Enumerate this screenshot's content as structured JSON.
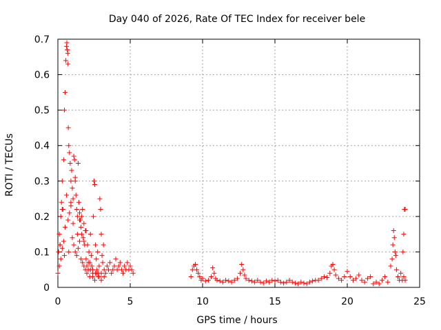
{
  "chart_data": {
    "type": "scatter",
    "title": "Day 040 of 2026, Rate Of TEC Index for receiver bele",
    "xlabel": "GPS time / hours",
    "ylabel": "ROTI / TECUs",
    "xlim": [
      0,
      25
    ],
    "ylim": [
      0,
      0.7
    ],
    "xticks": [
      0,
      5,
      10,
      15,
      20,
      25
    ],
    "yticks": [
      0,
      0.1,
      0.2,
      0.3,
      0.4,
      0.5,
      0.6,
      0.7
    ],
    "grid": true,
    "marker": "plus",
    "colors": {
      "marker": "#ff0000"
    },
    "x": [
      0.0,
      0.05,
      0.1,
      0.15,
      0.2,
      0.25,
      0.3,
      0.35,
      0.4,
      0.45,
      0.5,
      0.55,
      0.6,
      0.62,
      0.65,
      0.68,
      0.7,
      0.72,
      0.75,
      0.8,
      0.85,
      0.9,
      0.95,
      1.0,
      1.05,
      1.1,
      1.15,
      1.2,
      1.25,
      1.3,
      1.35,
      1.4,
      1.45,
      1.5,
      1.55,
      1.6,
      1.65,
      1.7,
      1.75,
      1.8,
      1.85,
      1.9,
      1.95,
      2.0,
      2.05,
      2.1,
      2.15,
      2.2,
      2.25,
      2.3,
      2.35,
      2.4,
      2.45,
      2.5,
      2.55,
      2.6,
      2.65,
      2.7,
      2.75,
      2.8,
      2.85,
      2.9,
      2.95,
      3.0,
      3.05,
      3.1,
      3.15,
      3.2,
      3.3,
      3.4,
      3.5,
      3.6,
      3.7,
      3.8,
      3.9,
      4.0,
      4.1,
      4.2,
      4.3,
      4.4,
      4.5,
      4.6,
      4.7,
      4.8,
      4.9,
      5.0,
      5.1,
      5.2,
      0.1,
      0.2,
      0.3,
      0.4,
      0.5,
      0.7,
      0.8,
      0.9,
      1.0,
      1.1,
      1.2,
      1.3,
      1.4,
      1.5,
      1.6,
      1.7,
      1.8,
      1.9,
      2.0,
      2.2,
      2.4,
      2.6,
      2.8,
      3.0,
      3.2,
      0.15,
      0.3,
      0.45,
      0.6,
      0.75,
      0.9,
      1.05,
      1.2,
      1.35,
      1.5,
      1.65,
      1.8,
      1.95,
      2.1,
      2.25,
      2.4,
      2.55,
      2.7,
      2.85,
      3.0,
      9.2,
      9.3,
      9.4,
      9.5,
      9.6,
      9.7,
      9.8,
      9.9,
      10.0,
      10.2,
      10.4,
      10.6,
      10.7,
      10.8,
      10.9,
      11.0,
      11.2,
      11.4,
      11.6,
      11.8,
      12.0,
      12.2,
      12.4,
      12.6,
      12.7,
      12.8,
      12.9,
      13.0,
      13.2,
      13.4,
      13.6,
      13.8,
      14.0,
      14.2,
      14.4,
      14.6,
      14.8,
      15.0,
      15.2,
      15.4,
      15.6,
      15.8,
      16.0,
      16.2,
      16.4,
      16.6,
      16.8,
      17.0,
      17.2,
      17.4,
      17.6,
      17.8,
      18.0,
      18.2,
      18.4,
      18.6,
      18.8,
      18.9,
      19.0,
      19.1,
      19.2,
      19.4,
      19.6,
      19.8,
      20.0,
      20.2,
      20.4,
      20.6,
      20.8,
      21.0,
      21.2,
      21.4,
      21.6,
      21.8,
      22.0,
      22.2,
      22.4,
      22.6,
      22.8,
      23.0,
      23.1,
      23.15,
      23.2,
      23.25,
      23.3,
      23.35,
      23.4,
      23.5,
      23.6,
      23.7,
      23.8,
      23.9,
      24.0,
      23.85,
      23.9,
      23.95,
      24.0
    ],
    "y": [
      0.04,
      0.1,
      0.15,
      0.12,
      0.2,
      0.24,
      0.3,
      0.22,
      0.36,
      0.5,
      0.55,
      0.64,
      0.68,
      0.69,
      0.67,
      0.66,
      0.63,
      0.45,
      0.4,
      0.38,
      0.35,
      0.3,
      0.33,
      0.28,
      0.25,
      0.37,
      0.36,
      0.3,
      0.26,
      0.22,
      0.2,
      0.35,
      0.24,
      0.21,
      0.19,
      0.17,
      0.15,
      0.22,
      0.14,
      0.18,
      0.12,
      0.16,
      0.08,
      0.06,
      0.12,
      0.05,
      0.1,
      0.07,
      0.15,
      0.09,
      0.06,
      0.04,
      0.2,
      0.3,
      0.29,
      0.12,
      0.08,
      0.05,
      0.1,
      0.04,
      0.06,
      0.25,
      0.22,
      0.15,
      0.09,
      0.07,
      0.12,
      0.05,
      0.04,
      0.06,
      0.05,
      0.07,
      0.04,
      0.05,
      0.06,
      0.08,
      0.05,
      0.06,
      0.07,
      0.05,
      0.04,
      0.06,
      0.05,
      0.07,
      0.05,
      0.06,
      0.05,
      0.04,
      0.06,
      0.08,
      0.11,
      0.13,
      0.17,
      0.19,
      0.21,
      0.23,
      0.14,
      0.12,
      0.1,
      0.09,
      0.11,
      0.13,
      0.08,
      0.07,
      0.06,
      0.05,
      0.04,
      0.03,
      0.05,
      0.04,
      0.03,
      0.04,
      0.03,
      0.12,
      0.22,
      0.09,
      0.26,
      0.1,
      0.24,
      0.18,
      0.31,
      0.15,
      0.19,
      0.2,
      0.13,
      0.16,
      0.07,
      0.05,
      0.03,
      0.02,
      0.04,
      0.03,
      0.02,
      0.03,
      0.05,
      0.06,
      0.065,
      0.05,
      0.04,
      0.03,
      0.02,
      0.025,
      0.018,
      0.02,
      0.03,
      0.055,
      0.04,
      0.025,
      0.02,
      0.018,
      0.015,
      0.02,
      0.018,
      0.015,
      0.02,
      0.025,
      0.04,
      0.065,
      0.05,
      0.035,
      0.025,
      0.02,
      0.018,
      0.015,
      0.02,
      0.015,
      0.012,
      0.018,
      0.015,
      0.02,
      0.018,
      0.02,
      0.015,
      0.012,
      0.015,
      0.02,
      0.015,
      0.012,
      0.01,
      0.015,
      0.012,
      0.01,
      0.015,
      0.018,
      0.02,
      0.02,
      0.025,
      0.03,
      0.028,
      0.04,
      0.06,
      0.065,
      0.05,
      0.035,
      0.025,
      0.02,
      0.03,
      0.045,
      0.03,
      0.02,
      0.025,
      0.035,
      0.02,
      0.015,
      0.025,
      0.03,
      0.01,
      0.015,
      0.01,
      0.02,
      0.03,
      0.015,
      0.06,
      0.08,
      0.12,
      0.16,
      0.14,
      0.1,
      0.09,
      0.05,
      0.03,
      0.02,
      0.04,
      0.02,
      0.03,
      0.02,
      0.1,
      0.15,
      0.22,
      0.22
    ]
  }
}
